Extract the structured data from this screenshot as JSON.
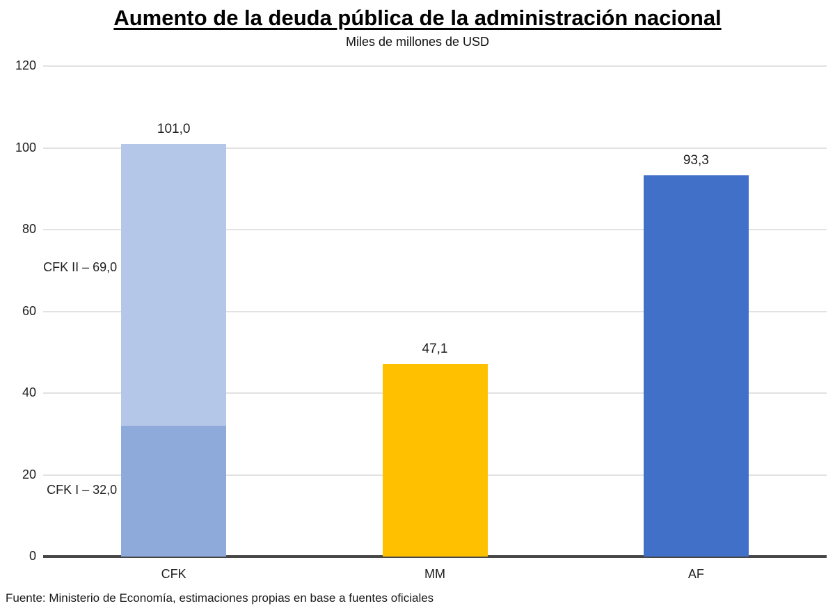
{
  "header": {
    "title": "Aumento de la deuda pública de la administración nacional",
    "subtitle": "Miles de millones de USD"
  },
  "footer": {
    "source": "Fuente: Ministerio de Economía, estimaciones propias en base a fuentes oficiales"
  },
  "chart_data": {
    "type": "bar",
    "stacked": true,
    "title": "Aumento de la deuda pública de la administración nacional",
    "subtitle": "Miles de millones de USD",
    "xlabel": "",
    "ylabel": "Miles de millones de USD",
    "ylim": [
      0,
      120
    ],
    "yticks": [
      0,
      20,
      40,
      60,
      80,
      100,
      120
    ],
    "grid": true,
    "legend": "none",
    "categories": [
      "CFK",
      "MM",
      "AF"
    ],
    "bars": [
      {
        "category": "CFK",
        "total": 101.0,
        "total_label": "101,0",
        "segments": [
          {
            "name": "CFK I",
            "value": 32.0,
            "color": "#8EAADB"
          },
          {
            "name": "CFK II",
            "value": 69.0,
            "color": "#B5C7E8"
          }
        ]
      },
      {
        "category": "MM",
        "total": 47.1,
        "total_label": "47,1",
        "segments": [
          {
            "name": "MM",
            "value": 47.1,
            "color": "#FFC000"
          }
        ]
      },
      {
        "category": "AF",
        "total": 93.3,
        "total_label": "93,3",
        "segments": [
          {
            "name": "AF",
            "value": 93.3,
            "color": "#4170C8"
          }
        ]
      }
    ],
    "annotations": [
      {
        "text": "CFK II – 69,0",
        "anchor_value": 70.5,
        "bar": "CFK"
      },
      {
        "text": "CFK I – 32,0",
        "anchor_value": 16.0,
        "bar": "CFK"
      }
    ],
    "colors": {
      "cfk_i": "#8EAADB",
      "cfk_ii": "#B5C7E8",
      "mm": "#FFC000",
      "af": "#4170C8",
      "axis_line": "#474747",
      "gridline": "#e2e2e2",
      "text": "#212121"
    }
  }
}
